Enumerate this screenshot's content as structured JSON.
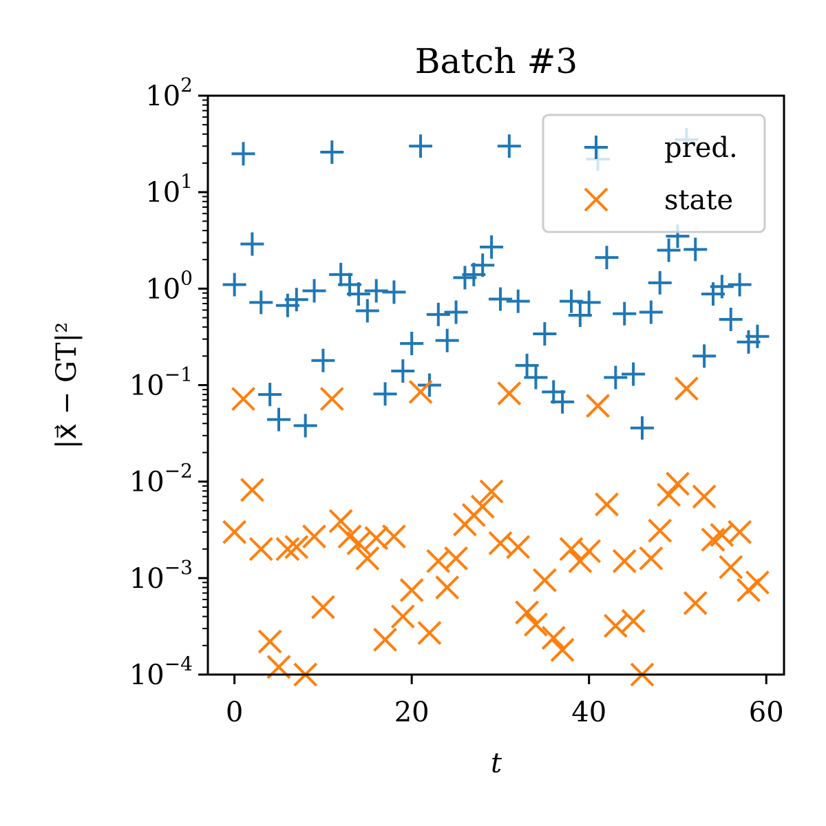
{
  "chart_data": {
    "type": "scatter",
    "title": "Batch #3",
    "xlabel": "t",
    "ylabel": "|x⃗ − GT|²",
    "xlim": [
      -3,
      62
    ],
    "ylim": [
      0.0001,
      100
    ],
    "yscale": "log",
    "x_ticks": [
      0,
      20,
      40,
      60
    ],
    "x_tick_labels": [
      "0",
      "20",
      "40",
      "60"
    ],
    "y_ticks": [
      0.0001,
      0.001,
      0.01,
      0.1,
      1,
      10,
      100
    ],
    "y_tick_labels": [
      {
        "base": "10",
        "exp": "−4"
      },
      {
        "base": "10",
        "exp": "−3"
      },
      {
        "base": "10",
        "exp": "−2"
      },
      {
        "base": "10",
        "exp": "−1"
      },
      {
        "base": "10",
        "exp": "0"
      },
      {
        "base": "10",
        "exp": "1"
      },
      {
        "base": "10",
        "exp": "2"
      }
    ],
    "grid": false,
    "legend_position": "top-right",
    "series": [
      {
        "name": "pred.",
        "marker": "plus",
        "color": "#1f77b4",
        "x": [
          0,
          1,
          2,
          3,
          4,
          5,
          6,
          7,
          8,
          9,
          10,
          11,
          12,
          13,
          14,
          15,
          16,
          17,
          18,
          19,
          20,
          21,
          22,
          23,
          24,
          25,
          26,
          27,
          28,
          29,
          30,
          31,
          32,
          33,
          34,
          35,
          36,
          37,
          38,
          39,
          40,
          41,
          42,
          43,
          44,
          45,
          46,
          47,
          48,
          49,
          50,
          51,
          52,
          53,
          54,
          55,
          56,
          57,
          58,
          59
        ],
        "y": [
          1.1,
          25,
          2.9,
          0.72,
          0.08,
          0.044,
          0.67,
          0.77,
          0.038,
          0.95,
          0.18,
          26,
          1.4,
          1.1,
          0.88,
          0.59,
          0.95,
          0.081,
          0.92,
          0.14,
          0.27,
          30,
          0.1,
          0.54,
          0.29,
          0.57,
          1.3,
          1.4,
          1.75,
          2.7,
          0.78,
          30,
          0.74,
          0.16,
          0.12,
          0.34,
          0.085,
          0.067,
          0.74,
          0.53,
          0.72,
          22,
          2.1,
          0.12,
          0.55,
          0.13,
          0.036,
          0.57,
          1.15,
          2.5,
          3.5,
          35,
          2.55,
          0.2,
          0.88,
          1.05,
          0.48,
          1.1,
          0.28,
          0.32
        ]
      },
      {
        "name": "state",
        "marker": "x",
        "color": "#ff7f0e",
        "x": [
          0,
          1,
          2,
          3,
          4,
          5,
          6,
          7,
          8,
          9,
          10,
          11,
          12,
          13,
          14,
          15,
          16,
          17,
          18,
          19,
          20,
          21,
          22,
          23,
          24,
          25,
          26,
          27,
          28,
          29,
          30,
          31,
          32,
          33,
          34,
          35,
          36,
          37,
          38,
          39,
          40,
          41,
          42,
          43,
          44,
          45,
          46,
          47,
          48,
          49,
          50,
          51,
          52,
          53,
          54,
          55,
          56,
          57,
          58,
          59
        ],
        "y": [
          0.003,
          0.072,
          0.0082,
          0.002,
          0.00022,
          0.00012,
          0.002,
          0.0021,
          0.0001,
          0.0027,
          0.0005,
          0.072,
          0.0039,
          0.0027,
          0.0023,
          0.0016,
          0.0026,
          0.00023,
          0.0027,
          0.0004,
          0.00075,
          0.085,
          0.00027,
          0.0015,
          0.0008,
          0.0016,
          0.0036,
          0.0045,
          0.0055,
          0.0079,
          0.0023,
          0.082,
          0.0021,
          0.00044,
          0.00033,
          0.00095,
          0.00024,
          0.00018,
          0.002,
          0.0015,
          0.0019,
          0.061,
          0.0058,
          0.00032,
          0.0015,
          0.00036,
          0.0001,
          0.0016,
          0.0031,
          0.0073,
          0.0095,
          0.092,
          0.00055,
          0.007,
          0.0025,
          0.0028,
          0.0013,
          0.003,
          0.00075,
          0.0009
        ]
      }
    ]
  }
}
